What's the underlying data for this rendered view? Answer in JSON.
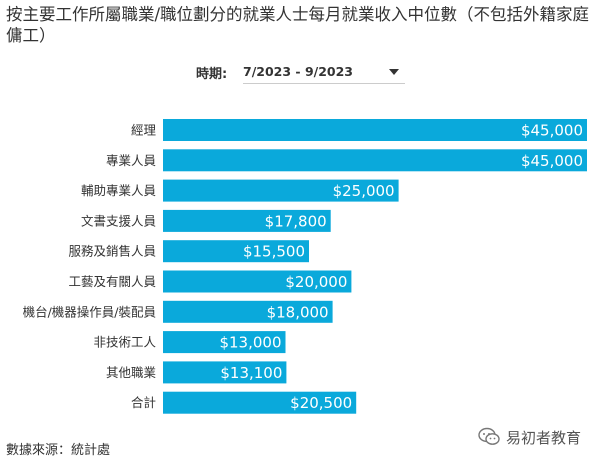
{
  "title": "按主要工作所屬職業/職位劃分的就業人士每月就業收入中位數（不包括外籍家庭傭工）",
  "filter": {
    "label": "時期:",
    "selected": "7/2023 - 9/2023"
  },
  "source": "數據來源：統計處",
  "watermark": "易初者教育",
  "colors": {
    "bar": "#0aa9db",
    "label_text": "#ffffff"
  },
  "chart_data": {
    "type": "bar",
    "orientation": "horizontal",
    "categories": [
      "經理",
      "專業人員",
      "輔助專業人員",
      "文書支援人員",
      "服務及銷售人員",
      "工藝及有關人員",
      "機台/機器操作員/裝配員",
      "非技術工人",
      "其他職業",
      "合計"
    ],
    "values": [
      45000,
      45000,
      25000,
      17800,
      15500,
      20000,
      18000,
      13000,
      13100,
      20500
    ],
    "value_labels": [
      "$45,000",
      "$45,000",
      "$25,000",
      "$17,800",
      "$15,500",
      "$20,000",
      "$18,000",
      "$13,000",
      "$13,100",
      "$20,500"
    ],
    "xlim": [
      0,
      45000
    ],
    "grid": false,
    "legend": "none"
  }
}
